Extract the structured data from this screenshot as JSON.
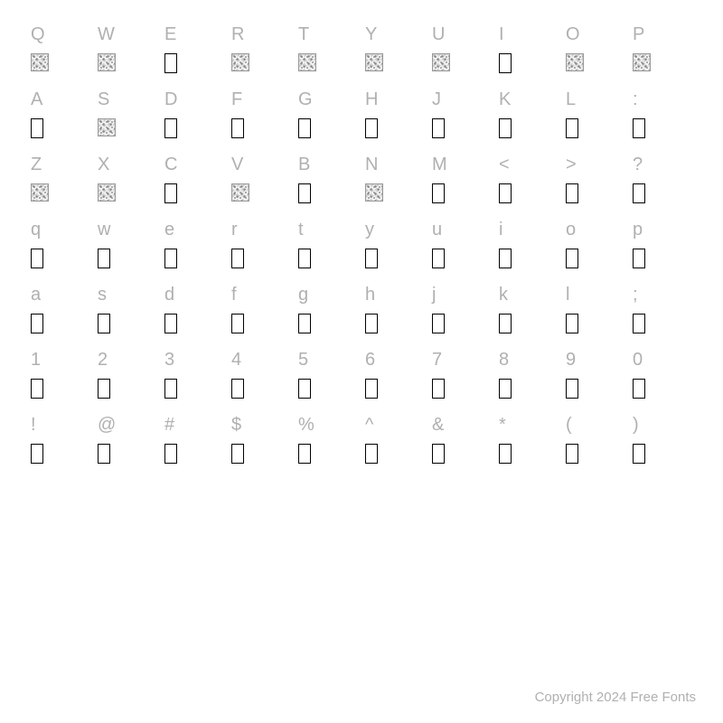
{
  "copyright": "Copyright 2024 Free Fonts",
  "colors": {
    "background": "#ffffff",
    "label_text": "#b0b0b0",
    "copyright_text": "#b0b0b0",
    "box_border": "#000000"
  },
  "typography": {
    "label_fontsize": 20,
    "copyright_fontsize": 15
  },
  "rows": [
    {
      "labels": [
        "Q",
        "W",
        "E",
        "R",
        "T",
        "Y",
        "U",
        "I",
        "O",
        "P"
      ],
      "glyphs": [
        "ornate",
        "ornate",
        "box",
        "ornate",
        "ornate",
        "ornate",
        "ornate",
        "box",
        "ornate",
        "ornate"
      ]
    },
    {
      "labels": [
        "A",
        "S",
        "D",
        "F",
        "G",
        "H",
        "J",
        "K",
        "L",
        ":"
      ],
      "glyphs": [
        "box",
        "ornate",
        "box",
        "box",
        "box",
        "box",
        "box",
        "box",
        "box",
        "box"
      ]
    },
    {
      "labels": [
        "Z",
        "X",
        "C",
        "V",
        "B",
        "N",
        "M",
        "<",
        ">",
        "?"
      ],
      "glyphs": [
        "ornate",
        "ornate",
        "box",
        "ornate",
        "box",
        "ornate",
        "box",
        "box",
        "box",
        "box"
      ]
    },
    {
      "labels": [
        "q",
        "w",
        "e",
        "r",
        "t",
        "y",
        "u",
        "i",
        "o",
        "p"
      ],
      "glyphs": [
        "box",
        "box",
        "box",
        "box",
        "box",
        "box",
        "box",
        "box",
        "box",
        "box"
      ]
    },
    {
      "labels": [
        "a",
        "s",
        "d",
        "f",
        "g",
        "h",
        "j",
        "k",
        "l",
        ";"
      ],
      "glyphs": [
        "box",
        "box",
        "box",
        "box",
        "box",
        "box",
        "box",
        "box",
        "box",
        "box"
      ]
    },
    {
      "labels": [
        "1",
        "2",
        "3",
        "4",
        "5",
        "6",
        "7",
        "8",
        "9",
        "0"
      ],
      "glyphs": [
        "box",
        "box",
        "box",
        "box",
        "box",
        "box",
        "box",
        "box",
        "box",
        "box"
      ]
    },
    {
      "labels": [
        "!",
        "@",
        "#",
        "$",
        "%",
        "^",
        "&",
        "*",
        "(",
        ")"
      ],
      "glyphs": [
        "box",
        "box",
        "box",
        "box",
        "box",
        "box",
        "box",
        "box",
        "box",
        "box"
      ]
    }
  ]
}
